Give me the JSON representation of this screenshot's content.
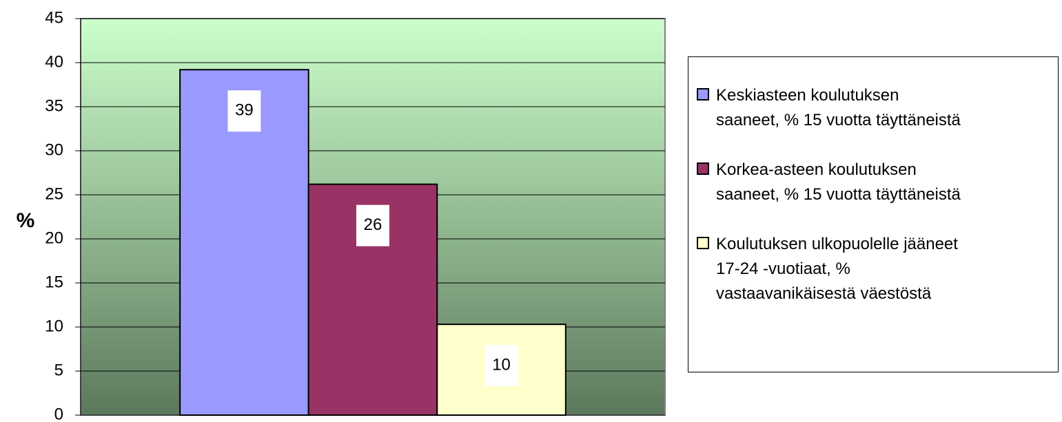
{
  "chart_data": {
    "type": "bar",
    "y_label": "%",
    "categories": [
      null
    ],
    "series": [
      {
        "name": "Keskiasteen koulutuksen\nsaaneet, % 15 vuotta täyttäneistä",
        "color": "#9999ff",
        "values": [
          39.2
        ],
        "value_labels": [
          "39"
        ]
      },
      {
        "name": "Korkea-asteen koulutuksen\nsaaneet, % 15 vuotta täyttäneistä",
        "color": "#993366",
        "values": [
          26.2
        ],
        "value_labels": [
          "26"
        ]
      },
      {
        "name": "Koulutuksen ulkopuolelle jääneet\n17-24 -vuotiaat, %\nvastaavanikäisestä väestöstä",
        "color": "#ffffcc",
        "values": [
          10.3
        ],
        "value_labels": [
          "10"
        ]
      }
    ],
    "ylim": [
      0,
      45
    ],
    "yticks": [
      0,
      5,
      10,
      15,
      20,
      25,
      30,
      35,
      40,
      45
    ],
    "grid": true,
    "legend": "right"
  }
}
